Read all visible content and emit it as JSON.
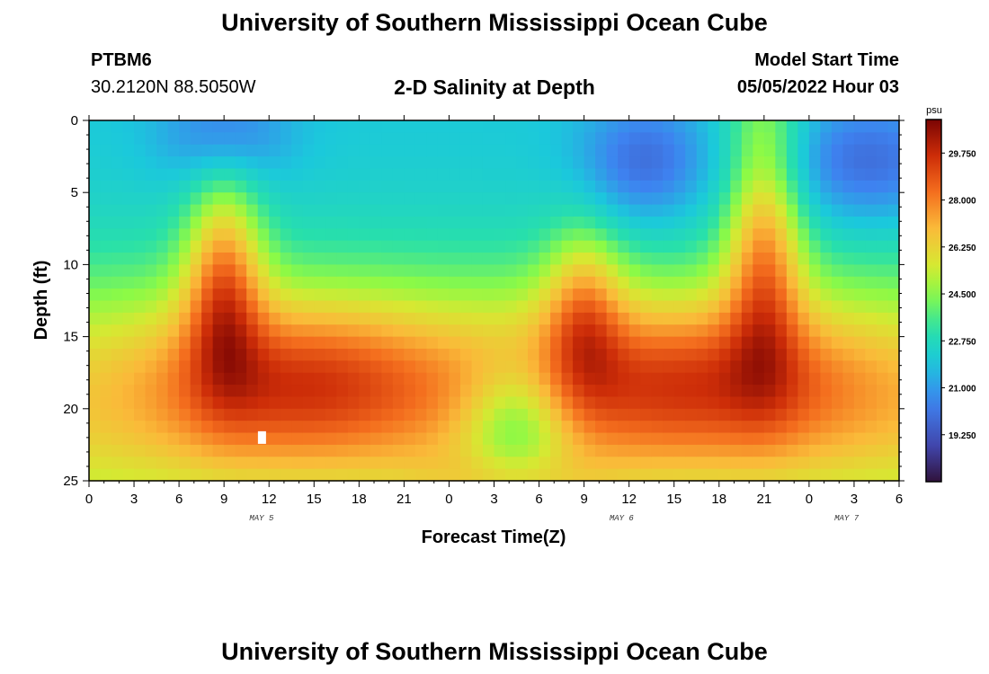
{
  "page": {
    "title_top": "University of Southern Mississippi Ocean Cube",
    "title_bottom": "University of Southern Mississippi Ocean Cube",
    "station_id": "PTBM6",
    "coords": "30.2120N  88.5050W",
    "plot_title": "2-D Salinity at Depth",
    "model_start_label": "Model Start Time",
    "model_start_value": "05/05/2022 Hour 03"
  },
  "chart_data": {
    "type": "heatmap",
    "xlabel": "Forecast Time(Z)",
    "ylabel": "Depth (ft)",
    "x_tick_labels": [
      "0",
      "3",
      "6",
      "9",
      "12",
      "15",
      "18",
      "21",
      "0",
      "3",
      "6",
      "9",
      "12",
      "15",
      "18",
      "21",
      "0",
      "3",
      "6"
    ],
    "x_hours_since_start": [
      0,
      3,
      6,
      9,
      12,
      15,
      18,
      21,
      24,
      27,
      30,
      33,
      36,
      39,
      42,
      45,
      48,
      51,
      54
    ],
    "date_labels": [
      {
        "text": "MAY 5",
        "hour": 11.5
      },
      {
        "text": "MAY 6",
        "hour": 35.5
      },
      {
        "text": "MAY 7",
        "hour": 50.5
      }
    ],
    "y_ticks": [
      0,
      5,
      10,
      15,
      20,
      25
    ],
    "ylim": [
      0,
      25
    ],
    "xlim": [
      0,
      54
    ],
    "y_inverted": true,
    "colorbar": {
      "unit": "psu",
      "ticks": [
        "29.750",
        "28.000",
        "26.250",
        "24.500",
        "22.750",
        "21.000",
        "19.250"
      ],
      "min": 17.5,
      "max": 31.0
    },
    "gaps": [
      {
        "hour": 11.5,
        "depth": 22
      }
    ]
  }
}
